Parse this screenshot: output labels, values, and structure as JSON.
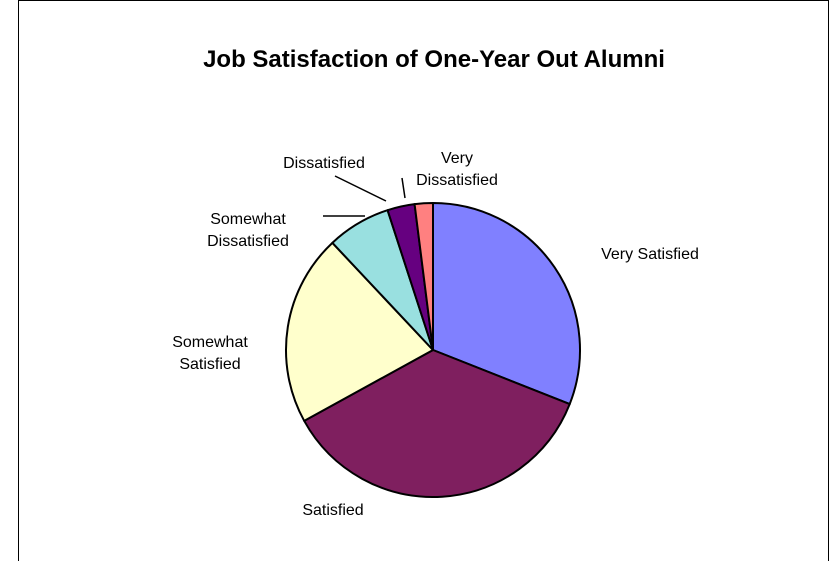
{
  "chart_data": {
    "type": "pie",
    "title": "Job Satisfaction of One-Year Out Alumni",
    "slices": [
      {
        "label": "Very Satisfied",
        "value": 31,
        "color": "#8080FF"
      },
      {
        "label": "Satisfied",
        "value": 36,
        "color": "#7F1F5F"
      },
      {
        "label": "Somewhat Satisfied",
        "value": 21,
        "color": "#FFFFCC"
      },
      {
        "label": "Somewhat Dissatisfied",
        "value": 7,
        "color": "#99E0E0"
      },
      {
        "label": "Dissatisfied",
        "value": 3,
        "color": "#660080"
      },
      {
        "label": "Very Dissatisfied",
        "value": 2,
        "color": "#FF8080"
      }
    ],
    "start_angle": "12 o'clock",
    "direction": "clockwise",
    "legend": "none"
  }
}
